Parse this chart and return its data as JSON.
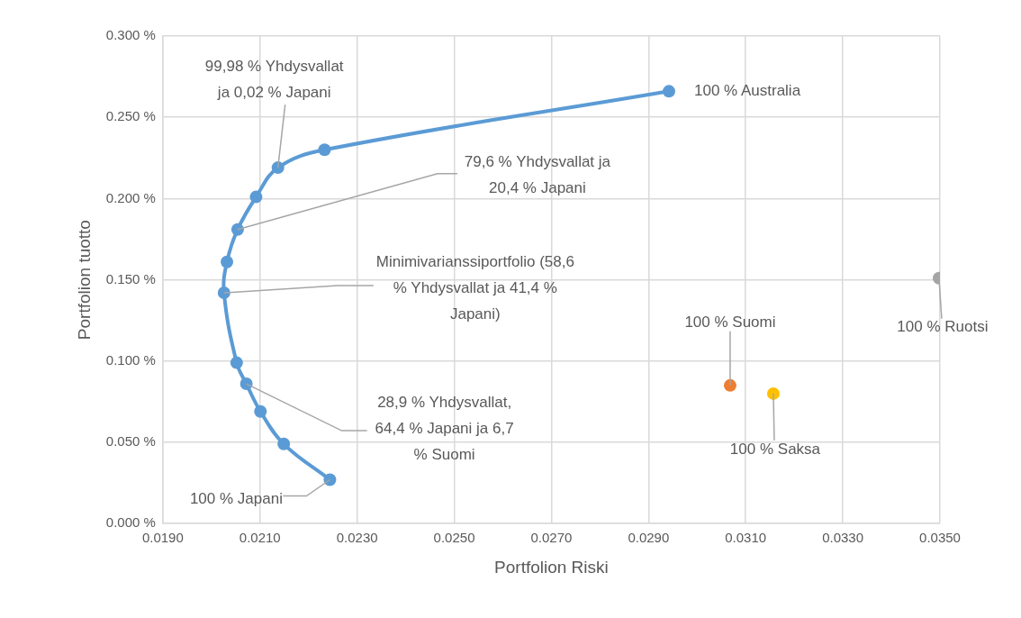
{
  "chart_data": {
    "type": "scatter",
    "xlabel": "Portfolion Riski",
    "ylabel": "Portfolion tuotto",
    "xlim": [
      0.019,
      0.035
    ],
    "ylim": [
      0,
      0.3
    ],
    "xticks": [
      {
        "value": 0.019,
        "label": "0.0190"
      },
      {
        "value": 0.021,
        "label": "0.0210"
      },
      {
        "value": 0.023,
        "label": "0.0230"
      },
      {
        "value": 0.025,
        "label": "0.0250"
      },
      {
        "value": 0.027,
        "label": "0.0270"
      },
      {
        "value": 0.029,
        "label": "0.0290"
      },
      {
        "value": 0.031,
        "label": "0.0310"
      },
      {
        "value": 0.033,
        "label": "0.0330"
      },
      {
        "value": 0.035,
        "label": "0.0350"
      }
    ],
    "yticks": [
      {
        "value": 0,
        "label": "0.000 %"
      },
      {
        "value": 0.05,
        "label": "0.050 %"
      },
      {
        "value": 0.1,
        "label": "0.100 %"
      },
      {
        "value": 0.15,
        "label": "0.150 %"
      },
      {
        "value": 0.2,
        "label": "0.200 %"
      },
      {
        "value": 0.25,
        "label": "0.250 %"
      },
      {
        "value": 0.3,
        "label": "0.300 %"
      }
    ],
    "grid": true,
    "legend": false,
    "marker": "circle",
    "series": [
      {
        "type": "line",
        "color": "#5b9bd5",
        "x": [
          0.02244,
          0.02149,
          0.02101,
          0.02072,
          0.02052,
          0.02026,
          0.02032,
          0.02054,
          0.02092,
          0.02137,
          0.02233,
          0.02942
        ],
        "values": [
          0.027,
          0.049,
          0.069,
          0.086,
          0.099,
          0.142,
          0.161,
          0.181,
          0.201,
          0.219,
          0.23,
          0.266
        ]
      },
      {
        "type": "scatter",
        "color": "#ed7d31",
        "x": [
          0.03068
        ],
        "values": [
          0.085
        ]
      },
      {
        "type": "scatter",
        "color": "#ffc000",
        "x": [
          0.03157
        ],
        "values": [
          0.08
        ]
      },
      {
        "type": "scatter",
        "color": "#a5a5a5",
        "x": [
          0.03498
        ],
        "values": [
          0.151
        ]
      }
    ],
    "annotations": [
      {
        "text": "99,98 % Yhdysvallat ja 0,02 % Japani",
        "x": 0.02137,
        "y": 0.219
      },
      {
        "text": "79,6 % Yhdysvallat ja 20,4 % Japani",
        "x": 0.02054,
        "y": 0.181
      },
      {
        "text": "Minimivarianssiportfolio (58,6 % Yhdysvallat ja 41,4 % Japani)",
        "x": 0.02026,
        "y": 0.142
      },
      {
        "text": "28,9 % Yhdysvallat, 64,4 % Japani ja 6,7 % Suomi",
        "x": 0.02072,
        "y": 0.086
      },
      {
        "text": "100 % Japani",
        "x": 0.02244,
        "y": 0.027
      },
      {
        "text": "100 % Australia",
        "x": 0.02942,
        "y": 0.266
      },
      {
        "text": "100 % Suomi",
        "x": 0.03068,
        "y": 0.085
      },
      {
        "text": "100 % Saksa",
        "x": 0.03157,
        "y": 0.08
      },
      {
        "text": "100 % Ruotsi",
        "x": 0.03498,
        "y": 0.151
      }
    ]
  }
}
